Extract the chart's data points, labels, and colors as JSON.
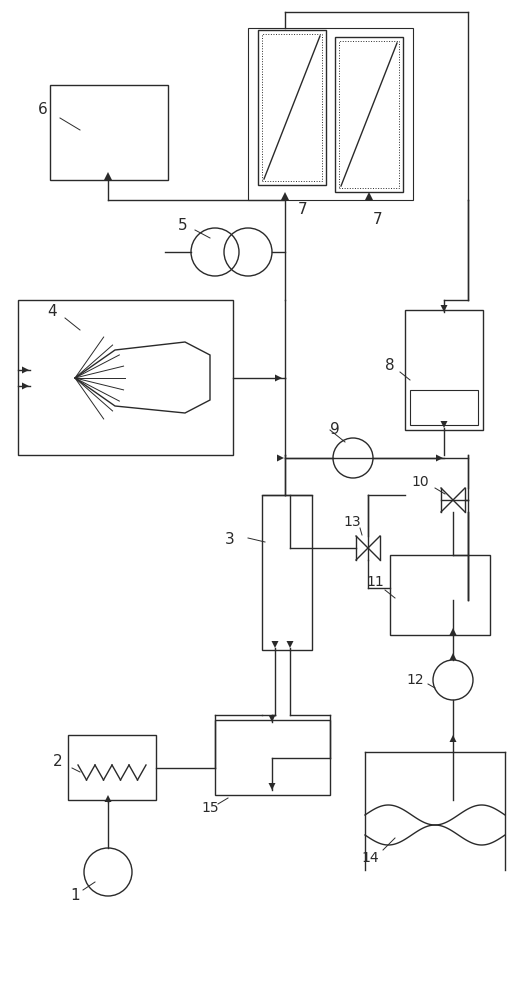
{
  "bg_color": "#ffffff",
  "line_color": "#2a2a2a",
  "figsize": [
    5.12,
    10.0
  ],
  "dpi": 100
}
